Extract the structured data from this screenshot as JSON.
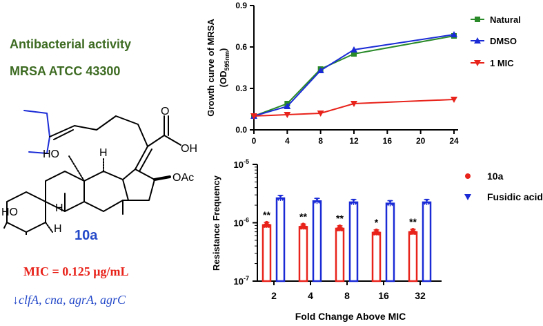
{
  "left_panel": {
    "heading_line1": "Antibacterial activity",
    "heading_line2": "MRSA ATCC 43300",
    "compound_label": "10a",
    "mic_text": "MIC = 0.125 μg/mL",
    "down_arrow": "↓",
    "genes_text": "clfA, cna, agrA, agrC",
    "structure": {
      "labels": [
        "HO",
        "H",
        "H",
        "O",
        "OH",
        "OAc",
        "HO",
        "H"
      ]
    }
  },
  "colors": {
    "green": "#2a8a2a",
    "blue": "#1a2bd6",
    "red": "#e8231b",
    "title_green": "#3d6b22",
    "compound_blue": "#2449c9"
  },
  "chart_data": [
    {
      "type": "line",
      "title": "",
      "xlabel": "",
      "ylabel": "Growth curve of MRSA",
      "ylabel_line2_prefix": "(OD",
      "ylabel_line2_sub": "595nm",
      "ylabel_line2_suffix": ")",
      "x": [
        0,
        4,
        8,
        12,
        24
      ],
      "xticks": [
        0,
        4,
        8,
        12,
        16,
        20,
        24
      ],
      "xlim": [
        0,
        24
      ],
      "ylim": [
        0,
        0.9
      ],
      "yticks": [
        0.0,
        0.3,
        0.6,
        0.9
      ],
      "ytick_labels": [
        "0.0",
        "0.3",
        "0.6",
        "0.9"
      ],
      "series": [
        {
          "name": "Natural",
          "color": "#2a8a2a",
          "marker": "square",
          "values": [
            0.1,
            0.19,
            0.44,
            0.55,
            0.68
          ]
        },
        {
          "name": "DMSO",
          "color": "#1a2bd6",
          "marker": "triangle-up",
          "values": [
            0.1,
            0.17,
            0.43,
            0.58,
            0.69
          ]
        },
        {
          "name": "1 MIC",
          "color": "#e8231b",
          "marker": "triangle-down",
          "values": [
            0.1,
            0.11,
            0.12,
            0.19,
            0.22
          ]
        }
      ],
      "legend_position": "right"
    },
    {
      "type": "bar",
      "title": "",
      "xlabel": "Fold Change Above MIC",
      "ylabel": "Resistance Frequency",
      "yscale": "log",
      "ylim_exp": [
        -7,
        -5
      ],
      "ytick_base": "10",
      "ytick_exps": [
        "-5",
        "-6",
        "-7"
      ],
      "categories": [
        "2",
        "4",
        "8",
        "16",
        "32"
      ],
      "series": [
        {
          "name": "10a",
          "color": "#e8231b",
          "marker": "circle",
          "values_exp": [
            -6.04,
            -6.07,
            -6.1,
            -6.17,
            -6.16
          ]
        },
        {
          "name": "Fusidic acid",
          "color": "#1a2bd6",
          "marker": "triangle-down",
          "values_exp": [
            -5.58,
            -5.63,
            -5.65,
            -5.67,
            -5.65
          ]
        }
      ],
      "significance": [
        "**",
        "**",
        "**",
        "*",
        "**"
      ],
      "legend_position": "right"
    }
  ]
}
